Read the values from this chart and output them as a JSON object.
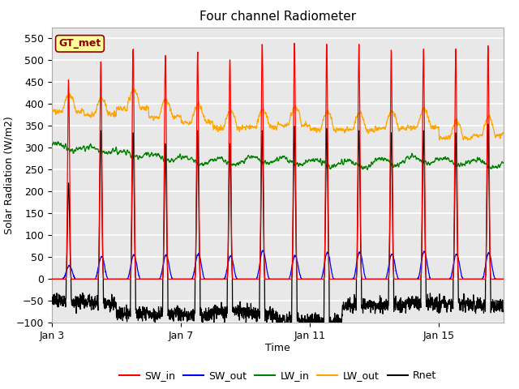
{
  "title": "Four channel Radiometer",
  "xlabel": "Time",
  "ylabel": "Solar Radiation (W/m2)",
  "annotation_text": "GT_met",
  "annotation_color": "#8B0000",
  "annotation_bg": "#FFFF99",
  "annotation_border": "#8B0000",
  "ylim": [
    -100,
    575
  ],
  "yticks": [
    -100,
    -50,
    0,
    50,
    100,
    150,
    200,
    250,
    300,
    350,
    400,
    450,
    500,
    550
  ],
  "xtick_positions": [
    0,
    4,
    8,
    12
  ],
  "xtick_labels": [
    "Jan 3",
    "Jan 7",
    "Jan 11",
    "Jan 15"
  ],
  "legend_entries": [
    "SW_in",
    "SW_out",
    "LW_in",
    "LW_out",
    "Rnet"
  ],
  "legend_colors": [
    "red",
    "blue",
    "green",
    "orange",
    "black"
  ],
  "bg_color": "#E8E8E8",
  "grid_color": "white",
  "n_days": 14,
  "sw_in_peaks": [
    450,
    500,
    530,
    510,
    515,
    500,
    540,
    545,
    540,
    535,
    520,
    525,
    520,
    530
  ],
  "sw_out_peaks": [
    30,
    52,
    55,
    55,
    57,
    53,
    65,
    53,
    60,
    62,
    57,
    63,
    57,
    60
  ],
  "lw_in_vals": [
    302,
    295,
    285,
    278,
    270,
    268,
    272,
    268,
    265,
    262,
    268,
    272,
    268,
    264
  ],
  "lw_out_vals": [
    383,
    375,
    390,
    370,
    358,
    345,
    347,
    352,
    342,
    340,
    343,
    347,
    322,
    328
  ],
  "rnet_peaks": [
    220,
    340,
    335,
    310,
    340,
    310,
    340,
    350,
    345,
    340,
    335,
    340,
    335,
    355
  ],
  "rnet_nights": [
    -50,
    -55,
    -80,
    -80,
    -80,
    -75,
    -80,
    -95,
    -95,
    -60,
    -60,
    -55,
    -55,
    -60
  ]
}
